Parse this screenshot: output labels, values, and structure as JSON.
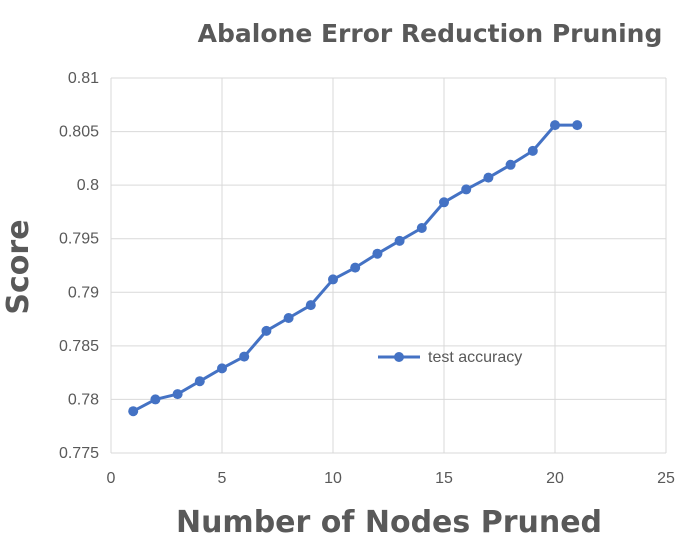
{
  "chart_data": {
    "type": "line",
    "title": "Abalone Error Reduction Pruning",
    "xlabel": "Number of Nodes Pruned",
    "ylabel": "Score",
    "xlim": [
      0,
      25
    ],
    "ylim": [
      0.775,
      0.81
    ],
    "x_ticks": [
      "0",
      "5",
      "10",
      "15",
      "20",
      "25"
    ],
    "y_ticks": [
      "0.775",
      "0.78",
      "0.785",
      "0.79",
      "0.795",
      "0.8",
      "0.805",
      "0.81"
    ],
    "grid": true,
    "legend_position": "center-right",
    "series": [
      {
        "name": "test accuracy",
        "color": "#4472c4",
        "x": [
          1,
          2,
          3,
          4,
          5,
          6,
          7,
          8,
          9,
          10,
          11,
          12,
          13,
          14,
          15,
          16,
          17,
          18,
          19,
          20,
          21
        ],
        "y": [
          0.7789,
          0.78,
          0.7805,
          0.7817,
          0.7829,
          0.784,
          0.7864,
          0.7876,
          0.7888,
          0.7912,
          0.7923,
          0.7936,
          0.7948,
          0.796,
          0.7984,
          0.7996,
          0.8007,
          0.8019,
          0.8032,
          0.8056,
          0.8056
        ]
      }
    ]
  }
}
